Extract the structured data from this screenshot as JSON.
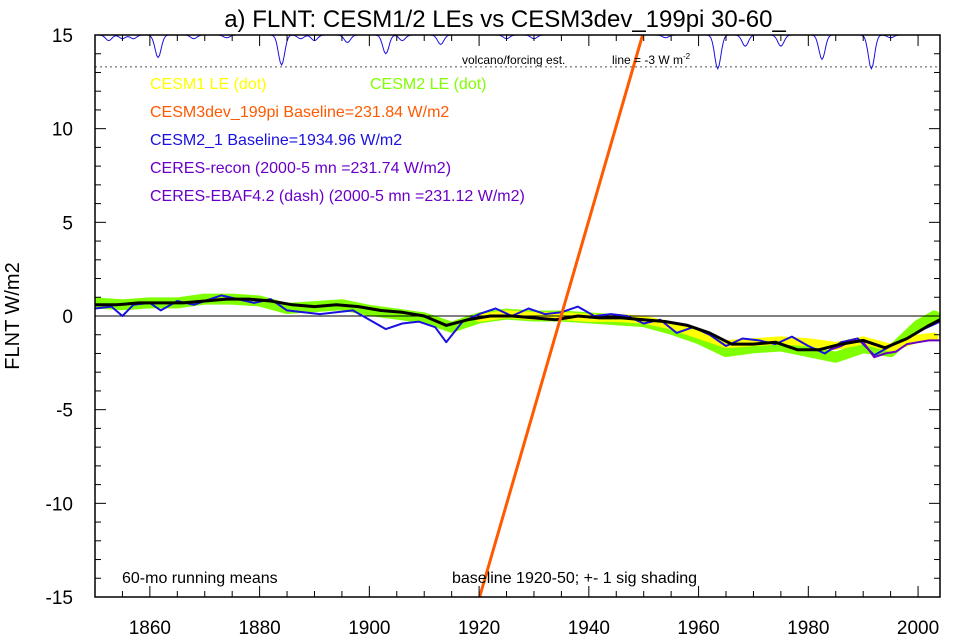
{
  "chart_data": {
    "type": "line",
    "title": "a) FLNT: CESM1/2 LEs vs CESM3dev_199pi 30-60_",
    "xlabel": "",
    "ylabel": "FLNT W/m2",
    "xlim": [
      1850,
      2004
    ],
    "ylim": [
      -15,
      15
    ],
    "xticks": [
      1860,
      1880,
      1900,
      1920,
      1940,
      1960,
      1980,
      2000
    ],
    "yticks": [
      15,
      10,
      5,
      0,
      -5,
      -10,
      -15
    ],
    "grid": false,
    "legend_position": "upper-left",
    "legend": [
      {
        "text": "CESM1 LE (dot)",
        "color": "#ffff00"
      },
      {
        "text": "CESM2 LE (dot)",
        "color": "#80ff00"
      },
      {
        "text": "CESM3dev_199pi Baseline=231.84 W/m2",
        "color": "#ff5a00"
      },
      {
        "text": "CESM2_1 Baseline=1934.96 W/m2",
        "color": "#1a10e0"
      },
      {
        "text": "CERES-recon (2000-5 mn =231.74 W/m2)",
        "color": "#6a00c8"
      },
      {
        "text": "CERES-EBAF4.2 (dash) (2000-5 mn =231.12 W/m2)",
        "color": "#6a00c8"
      }
    ],
    "annotations": {
      "volcano": "volcano/forcing est.",
      "line_note_prefix": "line = -3 W m",
      "line_note_sup": "-2",
      "running_mean": "60-mo running means",
      "baseline_note": "baseline 1920-50; +- 1 sig shading"
    },
    "volcano_reference_y": 13.3,
    "volcano_dips": [
      {
        "year": 1852.5,
        "depth": 0.3
      },
      {
        "year": 1855,
        "depth": 0.2
      },
      {
        "year": 1857,
        "depth": 0.2
      },
      {
        "year": 1861.5,
        "depth": 1.2
      },
      {
        "year": 1868,
        "depth": 0.2
      },
      {
        "year": 1874,
        "depth": 0.15
      },
      {
        "year": 1884,
        "depth": 1.6
      },
      {
        "year": 1887.5,
        "depth": 0.2
      },
      {
        "year": 1890,
        "depth": 0.3
      },
      {
        "year": 1896,
        "depth": 0.4
      },
      {
        "year": 1903,
        "depth": 1.0
      },
      {
        "year": 1906,
        "depth": 0.3
      },
      {
        "year": 1913,
        "depth": 0.5
      },
      {
        "year": 1925,
        "depth": 0.2
      },
      {
        "year": 1930,
        "depth": 0.2
      },
      {
        "year": 1954,
        "depth": 0.15
      },
      {
        "year": 1963.5,
        "depth": 1.8
      },
      {
        "year": 1968.5,
        "depth": 0.6
      },
      {
        "year": 1975,
        "depth": 0.6
      },
      {
        "year": 1982.5,
        "depth": 1.3
      },
      {
        "year": 1991.5,
        "depth": 1.8
      },
      {
        "year": 1995,
        "depth": 0.15
      }
    ],
    "series": [
      {
        "name": "CESM3dev_199pi",
        "color": "#ff5a00",
        "x": [
          1920.1,
          1949.8
        ],
        "y": [
          -15,
          15
        ]
      },
      {
        "name": "CESM2 LE (dot)",
        "color": "#80ff00",
        "x": [
          1850,
          1855,
          1860,
          1865,
          1870,
          1875,
          1880,
          1885,
          1890,
          1895,
          1900,
          1905,
          1910,
          1915,
          1920,
          1925,
          1930,
          1935,
          1940,
          1945,
          1950,
          1955,
          1960,
          1965,
          1970,
          1975,
          1980,
          1985,
          1990,
          1995,
          2000,
          2003
        ],
        "y": [
          0.7,
          0.6,
          0.7,
          0.7,
          0.9,
          0.9,
          0.8,
          0.4,
          0.5,
          0.6,
          0.3,
          0.1,
          -0.1,
          -0.6,
          -0.1,
          0.1,
          0.0,
          0.0,
          -0.1,
          -0.2,
          -0.3,
          -0.7,
          -1.2,
          -1.9,
          -1.7,
          -1.6,
          -1.9,
          -2.2,
          -1.7,
          -1.9,
          -0.5,
          0.0
        ]
      },
      {
        "name": "CESM1 LE (dot)",
        "color": "#ffff00",
        "x": [
          1920,
          1925,
          1930,
          1935,
          1940,
          1945,
          1950,
          1955,
          1960,
          1965,
          1970,
          1975,
          1980,
          1985,
          1990,
          1995,
          2000,
          2003
        ],
        "y": [
          -0.1,
          0.1,
          0.0,
          0.0,
          -0.1,
          -0.1,
          -0.2,
          -0.5,
          -1.0,
          -1.5,
          -1.4,
          -1.3,
          -1.4,
          -1.6,
          -1.3,
          -1.7,
          -1.2,
          -1.1
        ]
      },
      {
        "name": "CESM2_1 Baseline=1934.96 W/m2",
        "color": "#1a10e0",
        "x": [
          1850,
          1853,
          1855,
          1857,
          1860,
          1862,
          1865,
          1868,
          1870,
          1873,
          1876,
          1879,
          1882,
          1885,
          1888,
          1891,
          1894,
          1897,
          1900,
          1903,
          1906,
          1909,
          1912,
          1914,
          1917,
          1920,
          1923,
          1926,
          1929,
          1932,
          1935,
          1938,
          1941,
          1944,
          1947,
          1950,
          1953,
          1956,
          1959,
          1962,
          1965,
          1968,
          1971,
          1974,
          1977,
          1980,
          1983,
          1986,
          1989,
          1992,
          1995,
          1998,
          2001,
          2004
        ],
        "y": [
          0.4,
          0.5,
          0.0,
          0.6,
          0.7,
          0.3,
          0.8,
          0.6,
          0.8,
          1.1,
          0.9,
          0.7,
          0.9,
          0.3,
          0.2,
          0.1,
          0.2,
          0.3,
          -0.2,
          -0.7,
          -0.4,
          -0.3,
          -0.6,
          -1.4,
          -0.3,
          0.1,
          0.4,
          0.0,
          0.4,
          0.1,
          0.2,
          0.5,
          0.0,
          0.1,
          0.0,
          -0.4,
          -0.2,
          -0.9,
          -0.6,
          -1.0,
          -1.6,
          -1.2,
          -1.3,
          -1.5,
          -1.1,
          -1.6,
          -2.0,
          -1.4,
          -1.2,
          -2.1,
          -1.6,
          -1.2,
          -0.7,
          -0.3
        ]
      },
      {
        "name": "CERES-recon",
        "color": "#6a00c8",
        "x": [
          1984,
          1986,
          1988,
          1990,
          1992,
          1994,
          1996,
          1998,
          2000,
          2002,
          2004
        ],
        "y": [
          -1.8,
          -1.6,
          -1.3,
          -1.4,
          -2.2,
          -2.0,
          -1.9,
          -1.5,
          -1.4,
          -1.3,
          -1.3
        ]
      },
      {
        "name": "CESM ensemble mean",
        "color": "#000000",
        "x": [
          1850,
          1854,
          1858,
          1862,
          1866,
          1870,
          1874,
          1878,
          1882,
          1886,
          1890,
          1894,
          1898,
          1902,
          1906,
          1910,
          1914,
          1918,
          1922,
          1926,
          1930,
          1934,
          1938,
          1942,
          1946,
          1950,
          1954,
          1958,
          1962,
          1966,
          1970,
          1974,
          1978,
          1982,
          1986,
          1990,
          1994,
          1998,
          2002,
          2004
        ],
        "y": [
          0.6,
          0.6,
          0.7,
          0.7,
          0.7,
          0.8,
          0.9,
          0.9,
          0.8,
          0.6,
          0.5,
          0.6,
          0.5,
          0.3,
          0.2,
          0.0,
          -0.5,
          -0.2,
          0.0,
          0.0,
          -0.1,
          -0.2,
          0.0,
          -0.1,
          -0.1,
          -0.2,
          -0.3,
          -0.5,
          -0.9,
          -1.5,
          -1.5,
          -1.4,
          -1.8,
          -1.8,
          -1.5,
          -1.3,
          -1.7,
          -1.2,
          -0.5,
          -0.2
        ]
      }
    ]
  }
}
